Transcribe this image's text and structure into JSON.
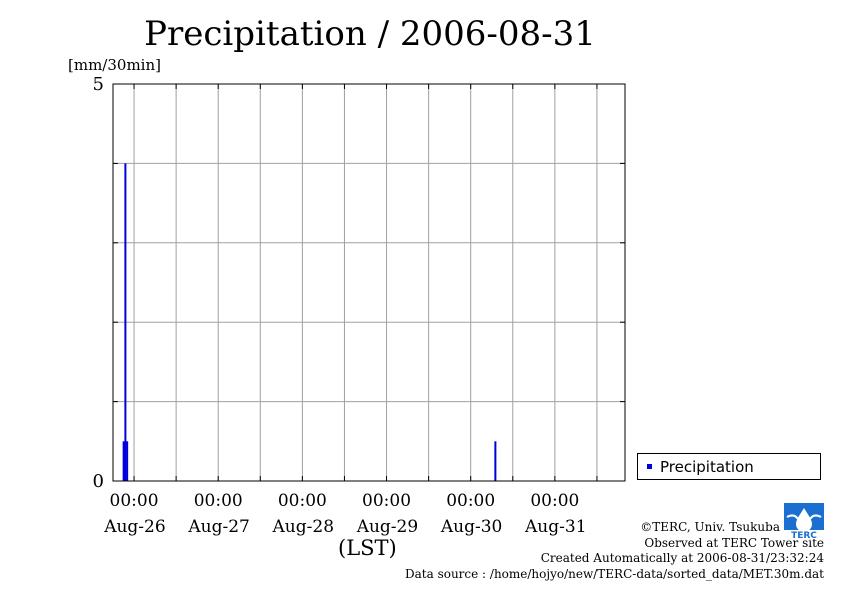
{
  "title": "Precipitation / 2006-08-31",
  "unit_label": "[mm/30min]",
  "x_axis_label": "(LST)",
  "legend": {
    "label": "Precipitation"
  },
  "footer": {
    "copyright": "©TERC, Univ. Tsukuba",
    "observed": "Observed at TERC Tower site",
    "created": "Created Automatically at 2006-08-31/23:32:24",
    "source": "Data source : /home/hojyo/new/TERC-data/sorted_data/MET.30m.dat"
  },
  "logo": {
    "text": "TERC"
  },
  "colors": {
    "series": "#0000dd",
    "grid": "#a0a0a0"
  },
  "chart_data": {
    "type": "bar",
    "title": "Precipitation / 2006-08-31",
    "ylabel": "[mm/30min]",
    "xlabel": "(LST)",
    "ylim": [
      0,
      5
    ],
    "yticks": [
      "0",
      "5"
    ],
    "xlim": [
      "2006-08-25 18:00",
      "2006-08-31 20:00"
    ],
    "xticks": [
      {
        "time": "00:00",
        "date": "Aug-26"
      },
      {
        "time": "00:00",
        "date": "Aug-27"
      },
      {
        "time": "00:00",
        "date": "Aug-28"
      },
      {
        "time": "00:00",
        "date": "Aug-29"
      },
      {
        "time": "00:00",
        "date": "Aug-30"
      },
      {
        "time": "00:00",
        "date": "Aug-31"
      }
    ],
    "grid": true,
    "legend_position": "bottom-right outside",
    "series": [
      {
        "name": "Precipitation",
        "points": [
          {
            "t": "2006-08-25 21:00",
            "value": 0.5
          },
          {
            "t": "2006-08-25 21:30",
            "value": 4.0
          },
          {
            "t": "2006-08-25 22:00",
            "value": 0.5
          },
          {
            "t": "2006-08-30 07:00",
            "value": 0.5
          }
        ]
      }
    ]
  }
}
